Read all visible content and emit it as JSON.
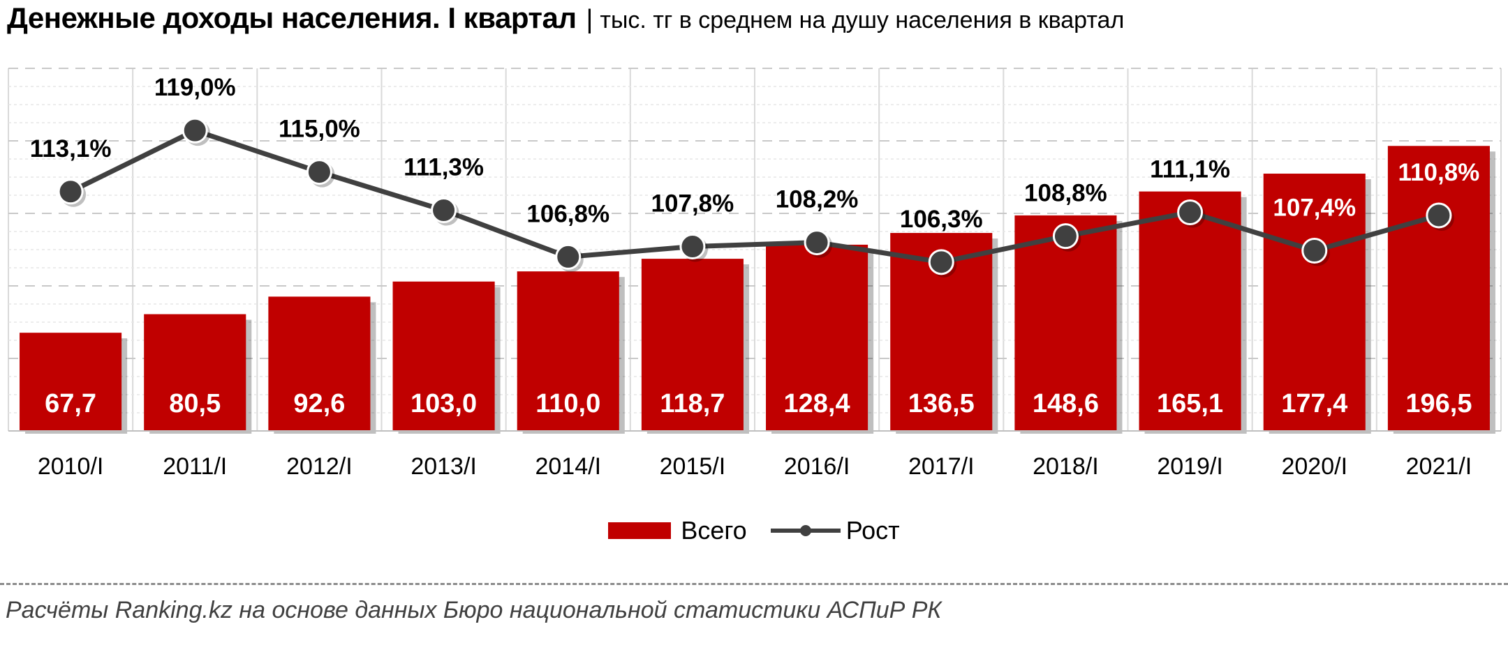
{
  "header": {
    "title": "Денежные доходы населения. I квартал",
    "separator": "|",
    "subtitle": "тыс. тг в среднем на душу населения в квартал"
  },
  "chart_data": {
    "type": "bar",
    "categories": [
      "2010/I",
      "2011/I",
      "2012/I",
      "2013/I",
      "2014/I",
      "2015/I",
      "2016/I",
      "2017/I",
      "2018/I",
      "2019/I",
      "2020/I",
      "2021/I"
    ],
    "series": [
      {
        "name": "Всего",
        "type": "bar",
        "axis": "primary",
        "values": [
          67.7,
          80.5,
          92.6,
          103.0,
          110.0,
          118.7,
          128.4,
          136.5,
          148.6,
          165.1,
          177.4,
          196.5
        ],
        "labels": [
          "67,7",
          "80,5",
          "92,6",
          "103,0",
          "110,0",
          "118,7",
          "128,4",
          "136,5",
          "148,6",
          "165,1",
          "177,4",
          "196,5"
        ],
        "color": "#c00000"
      },
      {
        "name": "Рост",
        "type": "line",
        "axis": "secondary",
        "values": [
          113.1,
          119.0,
          115.0,
          111.3,
          106.8,
          107.8,
          108.2,
          106.3,
          108.8,
          111.1,
          107.4,
          110.8
        ],
        "labels": [
          "113,1%",
          "119,0%",
          "115,0%",
          "111,3%",
          "106,8%",
          "107,8%",
          "108,2%",
          "106,3%",
          "108,8%",
          "111,1%",
          "107,4%",
          "110,8%"
        ],
        "color": "#404040"
      }
    ],
    "ylim": [
      0,
      250
    ],
    "y2lim": [
      90,
      125
    ],
    "grid": true,
    "legend_position": "bottom"
  },
  "legend": {
    "bar_label": "Всего",
    "line_label": "Рост"
  },
  "source": "Расчёты Ranking.kz на основе данных Бюро национальной статистики АСПиР РК"
}
